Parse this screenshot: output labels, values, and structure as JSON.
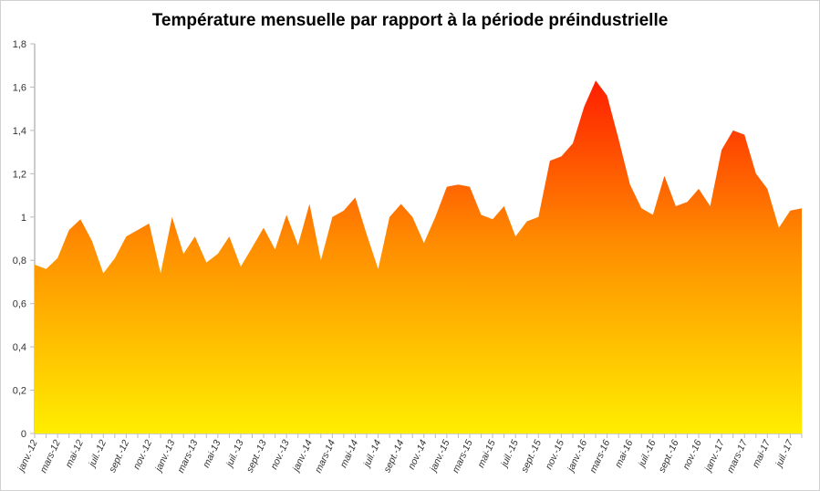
{
  "chart_data": {
    "type": "area",
    "title": "Température mensuelle par rapport à la période préindustrielle",
    "xlabel": "",
    "ylabel": "",
    "ylim": [
      0,
      1.8
    ],
    "yticks": [
      "0",
      "0,2",
      "0,4",
      "0,6",
      "0,8",
      "1",
      "1,2",
      "1,4",
      "1,6",
      "1,8"
    ],
    "ytick_values": [
      0,
      0.2,
      0.4,
      0.6,
      0.8,
      1,
      1.2,
      1.4,
      1.6,
      1.8
    ],
    "xtick_labels": [
      "janv.-12",
      "mars-12",
      "mai-12",
      "juil.-12",
      "sept.-12",
      "nov.-12",
      "janv.-13",
      "mars-13",
      "mai-13",
      "juil.-13",
      "sept.-13",
      "nov.-13",
      "janv.-14",
      "mars-14",
      "mai-14",
      "juil.-14",
      "sept.-14",
      "nov.-14",
      "janv.-15",
      "mars-15",
      "mai-15",
      "juil.-15",
      "sept.-15",
      "nov.-15",
      "janv.-16",
      "mars-16",
      "mai-16",
      "juil.-16",
      "sept.-16",
      "nov.-16",
      "janv.-17",
      "mars-17",
      "mai-17",
      "juil.-17"
    ],
    "grid": false,
    "legend": "none",
    "colors": {
      "bottom": "#ffee00",
      "middle": "#ff8c00",
      "top": "#ff2200"
    },
    "values": [
      0.78,
      0.76,
      0.81,
      0.94,
      0.99,
      0.89,
      0.74,
      0.81,
      0.91,
      0.94,
      0.97,
      0.74,
      1.0,
      0.83,
      0.91,
      0.79,
      0.83,
      0.91,
      0.77,
      0.86,
      0.95,
      0.85,
      1.01,
      0.87,
      1.06,
      0.8,
      1.0,
      1.03,
      1.09,
      0.92,
      0.76,
      1.0,
      1.06,
      1.0,
      0.88,
      1.0,
      1.14,
      1.15,
      1.14,
      1.01,
      0.99,
      1.05,
      0.91,
      0.98,
      1.0,
      1.26,
      1.28,
      1.34,
      1.51,
      1.63,
      1.56,
      1.36,
      1.15,
      1.04,
      1.01,
      1.19,
      1.05,
      1.07,
      1.13,
      1.05,
      1.31,
      1.4,
      1.38,
      1.2,
      1.13,
      0.95,
      1.03,
      1.04
    ]
  }
}
